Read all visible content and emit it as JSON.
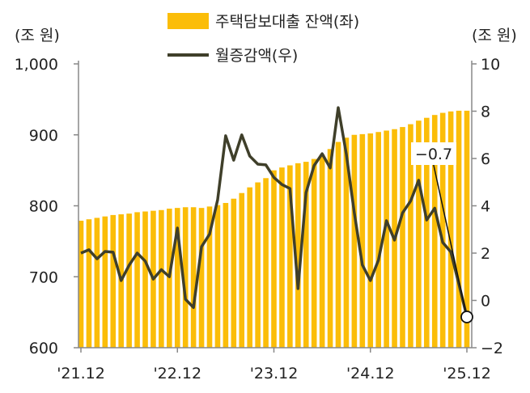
{
  "chart_data": {
    "type": "bar+line",
    "left_unit": "(조 원)",
    "right_unit": "(조 원)",
    "x_ticks": [
      "'21.12",
      "'22.12",
      "'23.12",
      "'24.12",
      "'25.12"
    ],
    "left_axis": {
      "min": 600,
      "max": 1000,
      "ticks": [
        "600",
        "700",
        "800",
        "900",
        "1,000"
      ]
    },
    "right_axis": {
      "min": -2,
      "max": 10,
      "ticks": [
        "-2",
        "0",
        "2",
        "4",
        "6",
        "8",
        "10"
      ]
    },
    "legend": {
      "position": "top-center",
      "bar_label": "주택담보대출 잔액(좌)",
      "line_label": "월증감액(우)"
    },
    "series": [
      {
        "name": "주택담보대출 잔액(좌)",
        "type": "bar",
        "axis": "left",
        "color": "#FBBD08",
        "values": [
          779,
          781,
          783,
          785,
          787,
          788,
          789,
          791,
          792,
          793,
          794,
          796,
          797,
          798,
          798,
          797,
          799,
          801,
          804,
          810,
          818,
          826,
          833,
          839,
          850,
          854,
          857,
          860,
          862,
          866,
          872,
          880,
          890,
          896,
          900,
          901,
          902,
          904,
          906,
          908,
          911,
          915,
          920,
          924,
          928,
          931,
          933,
          934,
          934
        ]
      },
      {
        "name": "월증감액(우)",
        "type": "line",
        "axis": "right",
        "color": "#3F3F2A",
        "values": [
          2.0,
          2.14,
          1.76,
          2.07,
          2.04,
          0.84,
          1.49,
          2.0,
          1.66,
          0.9,
          1.3,
          1.0,
          3.06,
          0.05,
          -0.3,
          2.27,
          2.8,
          4.25,
          6.96,
          5.93,
          7.0,
          6.1,
          5.76,
          5.73,
          5.2,
          4.9,
          4.73,
          0.5,
          4.56,
          5.7,
          6.2,
          5.6,
          8.15,
          6.2,
          3.7,
          1.5,
          0.84,
          1.7,
          3.37,
          2.55,
          3.7,
          4.2,
          5.08,
          3.4,
          3.9,
          2.45,
          2.05,
          0.7,
          -0.7
        ]
      }
    ],
    "annotation": {
      "text": "-0.7",
      "index": 48
    }
  }
}
